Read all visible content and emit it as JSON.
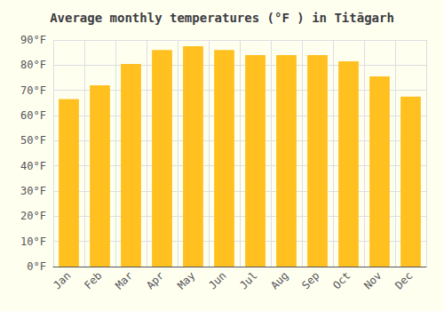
{
  "chart_data": {
    "type": "bar",
    "title": "Average monthly temperatures (°F ) in Titāgarh",
    "categories": [
      "Jan",
      "Feb",
      "Mar",
      "Apr",
      "May",
      "Jun",
      "Jul",
      "Aug",
      "Sep",
      "Oct",
      "Nov",
      "Dec"
    ],
    "values": [
      66.5,
      72.0,
      80.5,
      86.0,
      87.5,
      86.0,
      84.0,
      84.0,
      84.0,
      81.5,
      75.5,
      67.5
    ],
    "color": "#FFC020",
    "ylim": [
      0,
      90
    ],
    "yticks": [
      {
        "value": 0,
        "label": "0°F"
      },
      {
        "value": 10,
        "label": "10°F"
      },
      {
        "value": 20,
        "label": "20°F"
      },
      {
        "value": 30,
        "label": "30°F"
      },
      {
        "value": 40,
        "label": "40°F"
      },
      {
        "value": 50,
        "label": "50°F"
      },
      {
        "value": 60,
        "label": "60°F"
      },
      {
        "value": 70,
        "label": "70°F"
      },
      {
        "value": 80,
        "label": "80°F"
      },
      {
        "value": 90,
        "label": "90°F"
      }
    ],
    "grid": true
  }
}
